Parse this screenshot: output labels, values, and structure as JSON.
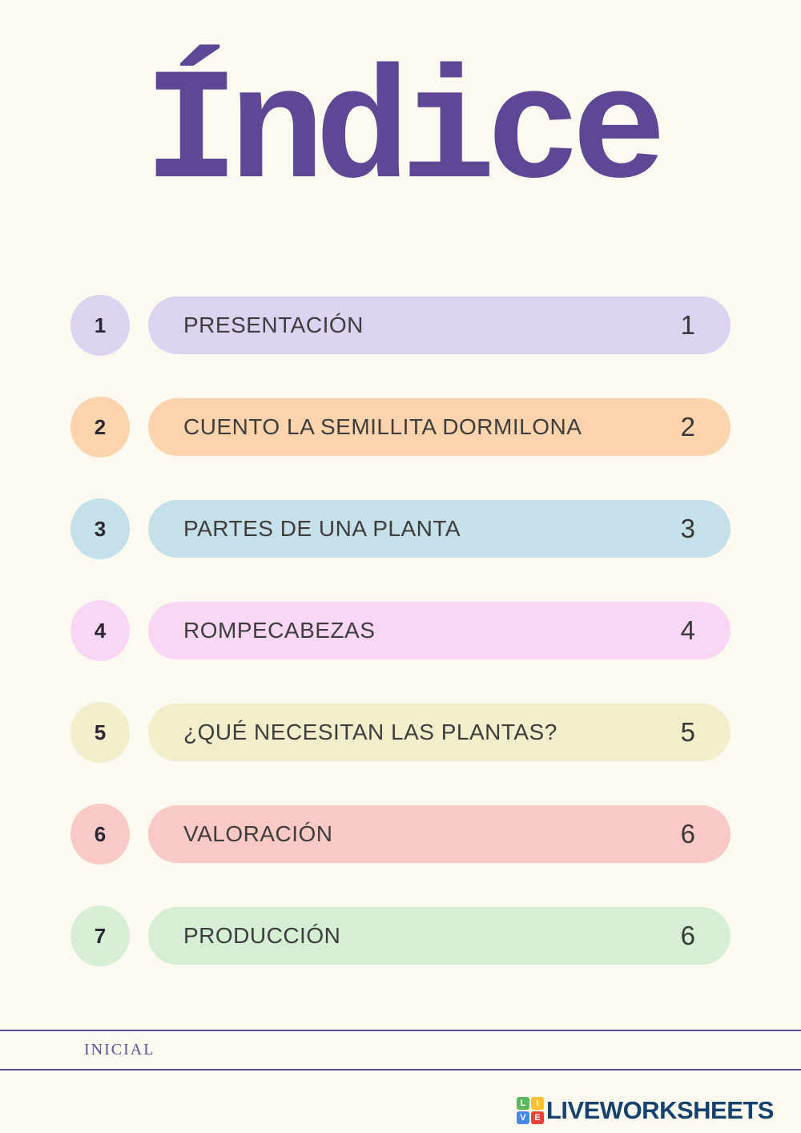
{
  "page": {
    "title": "Índice",
    "background_color": "#fbf9f0",
    "accent_purple": "#5e4795"
  },
  "toc": {
    "rows": [
      {
        "number": "1",
        "label": "PRESENTACIÓN",
        "page": "1",
        "color": "#ded2f1"
      },
      {
        "number": "2",
        "label": "CUENTO LA SEMILLITA DORMILONA",
        "page": "2",
        "color": "#fbd4ad"
      },
      {
        "number": "3",
        "label": "PARTES DE UNA PLANTA",
        "page": "3",
        "color": "#c6e0e9"
      },
      {
        "number": "4",
        "label": "ROMPECABEZAS",
        "page": "4",
        "color": "#f9d6f3"
      },
      {
        "number": "5",
        "label": "¿QUÉ NECESITAN LAS PLANTAS?",
        "page": "5",
        "color": "#f2edcb"
      },
      {
        "number": "6",
        "label": "VALORACIÓN",
        "page": "6",
        "color": "#f9c9c5"
      },
      {
        "number": "7",
        "label": "PRODUCCIÓN",
        "page": "6",
        "color": "#d6eed4"
      }
    ]
  },
  "footer": {
    "level_label": "INICIAL",
    "line_color": "#5e4795"
  },
  "brand": {
    "name": "LIVEWORKSHEETS",
    "text_color": "#16426f",
    "grid": [
      {
        "letter": "L",
        "color": "#5cb85c"
      },
      {
        "letter": "I",
        "color": "#fdc02f"
      },
      {
        "letter": "V",
        "color": "#4a86e8"
      },
      {
        "letter": "E",
        "color": "#ea4335"
      }
    ]
  }
}
